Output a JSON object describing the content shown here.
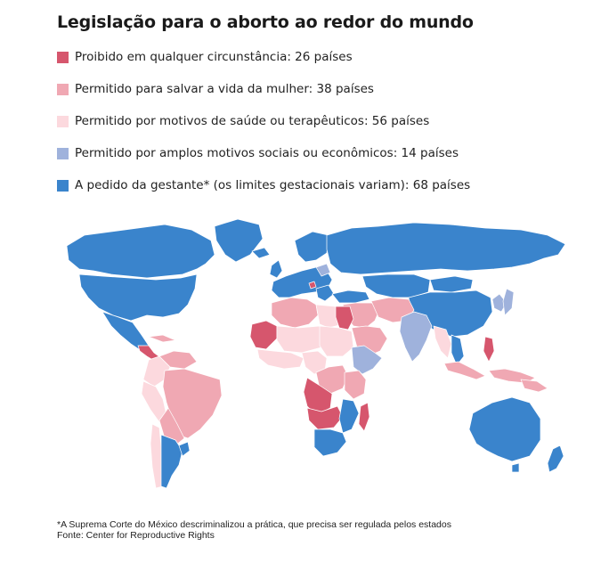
{
  "title": "Legislação para o aborto ao redor do mundo",
  "legend": [
    {
      "label": "Proibido em qualquer circunstância: 26 países",
      "color": "#d6566d",
      "countries": 26
    },
    {
      "label": "Permitido para salvar a vida da mulher: 38 países",
      "color": "#f0a8b3",
      "countries": 38
    },
    {
      "label": "Permitido por motivos de saúde ou terapêuticos: 56 países",
      "color": "#fcd9de",
      "countries": 56
    },
    {
      "label": "Permitido por amplos motivos sociais ou econômicos: 14 países",
      "color": "#9fb2dc",
      "countries": 14
    },
    {
      "label": "A pedido da gestante* (os limites gestacionais variam): 68 países",
      "color": "#3a84cc",
      "countries": 68
    }
  ],
  "footnote": {
    "note": "*A Suprema Corte do México descriminalizou a prática, que precisa ser regulada pelos estados",
    "source": "Fonte: Center for Reproductive Rights"
  }
}
